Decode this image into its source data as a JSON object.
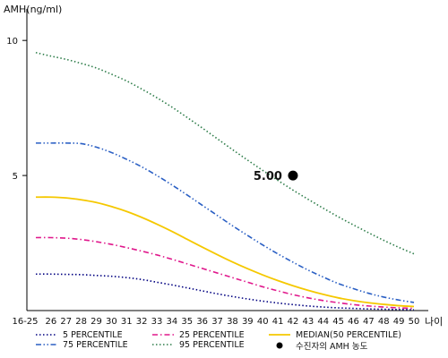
{
  "chart_data": {
    "type": "line",
    "ylabel": "AMH(ng/ml)",
    "xlabel": "나이",
    "ylim": [
      0,
      11
    ],
    "yticks": [
      5,
      10
    ],
    "categories": [
      "16-25",
      "26",
      "27",
      "28",
      "29",
      "30",
      "31",
      "32",
      "33",
      "34",
      "35",
      "36",
      "37",
      "38",
      "39",
      "40",
      "41",
      "42",
      "43",
      "44",
      "45",
      "46",
      "47",
      "48",
      "49",
      "50"
    ],
    "series": [
      {
        "name": "5 PERCENTILE",
        "color": "#000080",
        "dash": "dotted",
        "values": [
          1.35,
          1.35,
          1.34,
          1.33,
          1.3,
          1.27,
          1.22,
          1.15,
          1.05,
          0.95,
          0.84,
          0.73,
          0.62,
          0.52,
          0.43,
          0.35,
          0.28,
          0.22,
          0.17,
          0.13,
          0.1,
          0.08,
          0.06,
          0.05,
          0.04,
          0.03
        ]
      },
      {
        "name": "25 PERCENTILE",
        "color": "#e0188c",
        "dash": "dashdot",
        "values": [
          2.7,
          2.7,
          2.68,
          2.63,
          2.55,
          2.45,
          2.33,
          2.2,
          2.06,
          1.9,
          1.73,
          1.56,
          1.39,
          1.22,
          1.05,
          0.88,
          0.73,
          0.59,
          0.47,
          0.37,
          0.29,
          0.22,
          0.17,
          0.13,
          0.1,
          0.08
        ]
      },
      {
        "name": "MEDIAN(50 PERCENTILE)",
        "color": "#f5c800",
        "dash": "solid",
        "values": [
          4.2,
          4.2,
          4.17,
          4.1,
          4.0,
          3.85,
          3.67,
          3.45,
          3.2,
          2.93,
          2.64,
          2.35,
          2.07,
          1.8,
          1.55,
          1.32,
          1.11,
          0.92,
          0.75,
          0.6,
          0.47,
          0.37,
          0.29,
          0.23,
          0.18,
          0.15
        ]
      },
      {
        "name": "75 PERCENTILE",
        "color": "#2a5fc4",
        "dash": "dashdotdot",
        "values": [
          6.2,
          6.2,
          6.2,
          6.18,
          6.05,
          5.85,
          5.6,
          5.32,
          5.0,
          4.65,
          4.28,
          3.9,
          3.52,
          3.14,
          2.78,
          2.43,
          2.1,
          1.79,
          1.5,
          1.24,
          1.0,
          0.81,
          0.64,
          0.5,
          0.39,
          0.3
        ]
      },
      {
        "name": "95 PERCENTILE",
        "color": "#2e7d4a",
        "dash": "dotted",
        "values": [
          9.55,
          9.42,
          9.3,
          9.15,
          8.98,
          8.75,
          8.5,
          8.2,
          7.88,
          7.53,
          7.15,
          6.76,
          6.36,
          5.96,
          5.57,
          5.19,
          4.82,
          4.46,
          4.12,
          3.79,
          3.47,
          3.17,
          2.88,
          2.6,
          2.34,
          2.1
        ]
      }
    ],
    "marker": {
      "name": "수진자의 AMH 농도",
      "category": "42",
      "value": 5.0,
      "label": "5.00",
      "color": "#000000"
    }
  }
}
